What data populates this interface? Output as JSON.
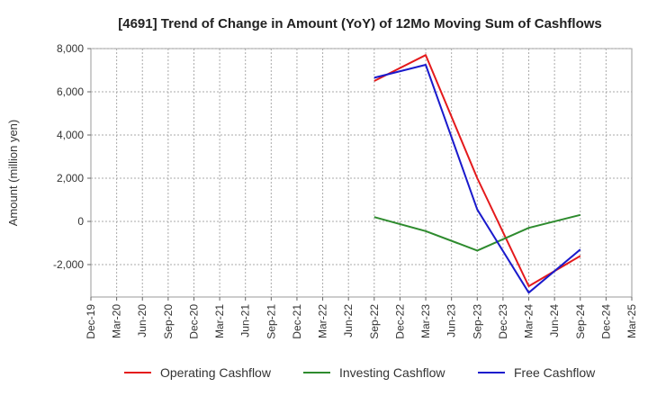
{
  "chart_data": {
    "type": "line",
    "title": "[4691]  Trend of Change in Amount (YoY) of 12Mo Moving Sum of Cashflows",
    "xlabel": "",
    "ylabel": "Amount (million yen)",
    "ylim": [
      -3500,
      8000
    ],
    "yticks": [
      8000,
      6000,
      4000,
      2000,
      0,
      -2000
    ],
    "ytick_labels": [
      "8,000",
      "6,000",
      "4,000",
      "2,000",
      "0",
      "-2,000"
    ],
    "categories": [
      "Dec-19",
      "Mar-20",
      "Jun-20",
      "Sep-20",
      "Dec-20",
      "Mar-21",
      "Jun-21",
      "Sep-21",
      "Dec-21",
      "Mar-22",
      "Jun-22",
      "Sep-22",
      "Dec-22",
      "Mar-23",
      "Jun-23",
      "Sep-23",
      "Dec-23",
      "Mar-24",
      "Jun-24",
      "Sep-24",
      "Dec-24",
      "Mar-25"
    ],
    "grid": true,
    "legend_position": "bottom",
    "series": [
      {
        "name": "Operating Cashflow",
        "color": "#e41a1c",
        "values": [
          null,
          null,
          null,
          null,
          null,
          null,
          null,
          null,
          null,
          null,
          null,
          6500,
          null,
          7700,
          null,
          2000,
          null,
          -3000,
          null,
          -1600,
          null,
          null
        ]
      },
      {
        "name": "Investing Cashflow",
        "color": "#2e8b2e",
        "values": [
          null,
          null,
          null,
          null,
          null,
          null,
          null,
          null,
          null,
          null,
          null,
          200,
          null,
          -450,
          null,
          -1350,
          null,
          -300,
          null,
          300,
          null,
          null
        ]
      },
      {
        "name": "Free Cashflow",
        "color": "#1a1acc",
        "values": [
          null,
          null,
          null,
          null,
          null,
          null,
          null,
          null,
          null,
          null,
          null,
          6650,
          null,
          7250,
          null,
          550,
          null,
          -3300,
          null,
          -1300,
          null,
          null
        ]
      }
    ]
  }
}
